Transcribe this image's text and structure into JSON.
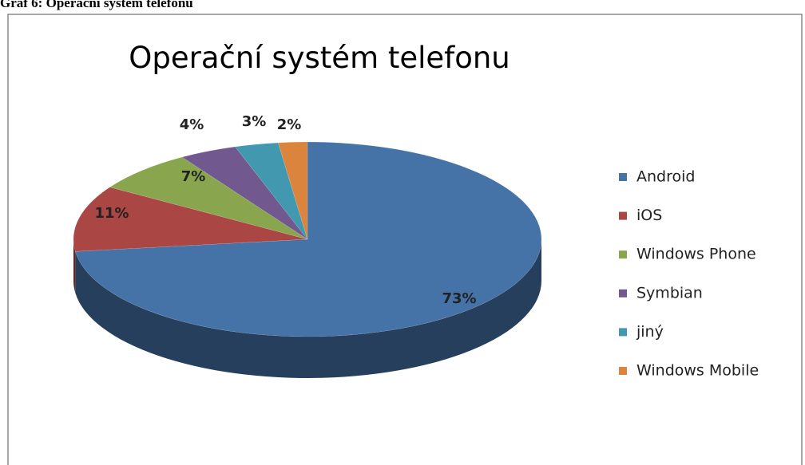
{
  "caption": "Graf 6: Operační systém telefonu",
  "chart_data": {
    "type": "pie",
    "title": "Operační systém telefonu",
    "categories": [
      "Android",
      "iOS",
      "Windows Phone",
      "Symbian",
      "jiný",
      "Windows Mobile"
    ],
    "values": [
      73,
      11,
      7,
      4,
      3,
      2
    ],
    "value_labels": [
      "73%",
      "11%",
      "7%",
      "4%",
      "3%",
      "2%"
    ],
    "colors": [
      "#4572a7",
      "#aa4643",
      "#89a54e",
      "#71588f",
      "#4198af",
      "#db843d"
    ],
    "legend": "right"
  }
}
